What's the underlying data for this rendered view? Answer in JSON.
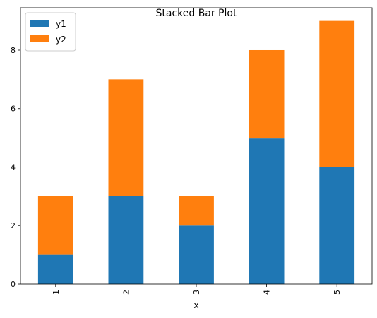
{
  "chart_data": {
    "type": "bar",
    "stacked": true,
    "title": "Stacked Bar Plot",
    "xlabel": "x",
    "ylabel": "",
    "categories": [
      "1",
      "2",
      "3",
      "4",
      "5"
    ],
    "series": [
      {
        "name": "y1",
        "values": [
          1,
          3,
          2,
          5,
          4
        ],
        "color": "#1f77b4"
      },
      {
        "name": "y2",
        "values": [
          2,
          4,
          1,
          3,
          5
        ],
        "color": "#ff7f0e"
      }
    ],
    "ylim": [
      0,
      9.45
    ],
    "yticks": [
      0,
      2,
      4,
      6,
      8
    ],
    "grid": false,
    "legend_position": "top-left"
  }
}
